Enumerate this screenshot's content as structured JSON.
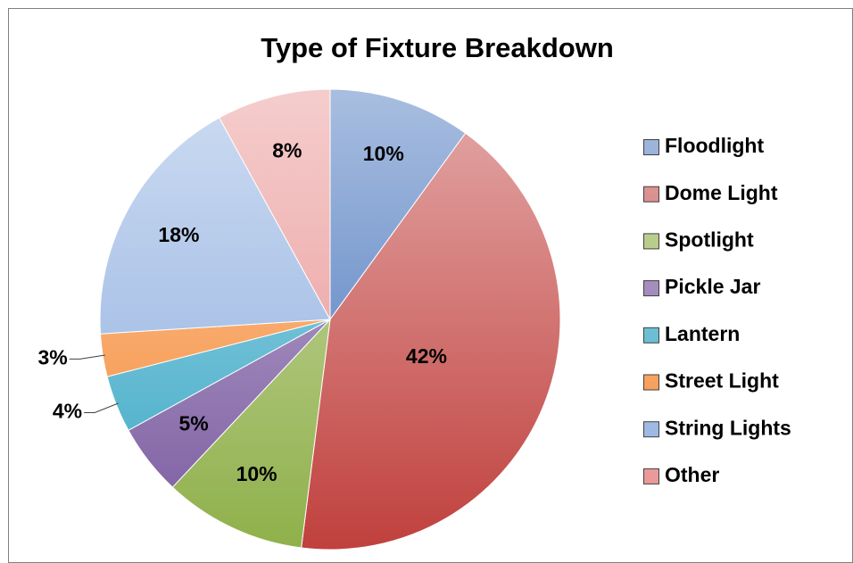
{
  "chart_data": {
    "type": "pie",
    "title": "Type of Fixture Breakdown",
    "categories": [
      "Floodlight",
      "Dome Light",
      "Spotlight",
      "Pickle Jar",
      "Lantern",
      "Street Light",
      "String Lights",
      "Other"
    ],
    "values": [
      10,
      42,
      10,
      5,
      4,
      3,
      18,
      8
    ],
    "value_labels": [
      "10%",
      "42%",
      "10%",
      "5%",
      "4%",
      "3%",
      "18%",
      "8%"
    ],
    "colors": [
      "#3f6fba",
      "#c0403d",
      "#8fb04a",
      "#7a5aa0",
      "#3aa8c6",
      "#f58a35",
      "#8eaee0",
      "#e89090"
    ],
    "legend": "right"
  }
}
